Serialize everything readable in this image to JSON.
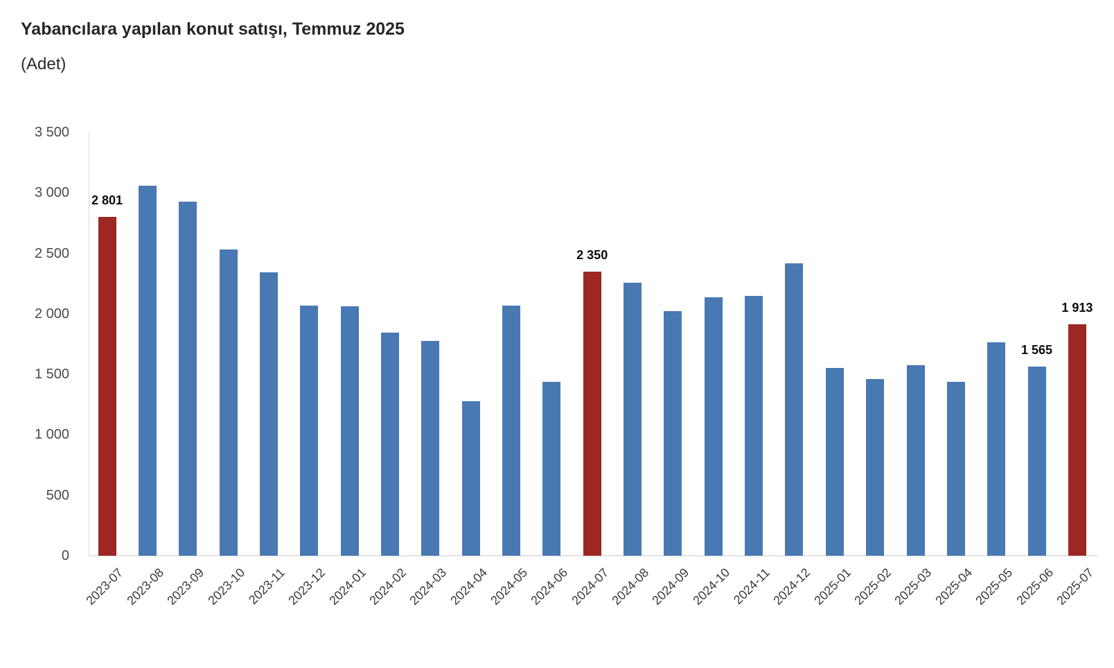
{
  "header": {
    "title": "Yabancılara yapılan konut satışı, Temmuz 2025",
    "subtitle": "(Adet)"
  },
  "chart_data": {
    "type": "bar",
    "title": "Yabancılara yapılan konut satışı, Temmuz 2025",
    "unit_label": "(Adet)",
    "categories": [
      "2023-07",
      "2023-08",
      "2023-09",
      "2023-10",
      "2023-11",
      "2023-12",
      "2024-01",
      "2024-02",
      "2024-03",
      "2024-04",
      "2024-05",
      "2024-06",
      "2024-07",
      "2024-08",
      "2024-09",
      "2024-10",
      "2024-11",
      "2024-12",
      "2025-01",
      "2025-02",
      "2025-03",
      "2025-04",
      "2025-05",
      "2025-06",
      "2025-07"
    ],
    "values": [
      2801,
      3060,
      2925,
      2530,
      2340,
      2065,
      2060,
      1845,
      1775,
      1275,
      2065,
      1440,
      2350,
      2255,
      2020,
      2135,
      2150,
      2415,
      1550,
      1460,
      1575,
      1440,
      1765,
      1565,
      1913
    ],
    "highlight_indices": [
      0,
      12,
      24
    ],
    "data_labels": [
      {
        "index": 0,
        "text": "2 801"
      },
      {
        "index": 12,
        "text": "2 350"
      },
      {
        "index": 23,
        "text": "1 565"
      },
      {
        "index": 24,
        "text": "1 913"
      }
    ],
    "ylim": [
      0,
      3500
    ],
    "ytick_step": 500,
    "ytick_labels": [
      "0",
      "500",
      "1 000",
      "1 500",
      "2 000",
      "2 500",
      "3 000",
      "3 500"
    ],
    "grid": false,
    "legend": false,
    "colors": {
      "bar": "#4879b3",
      "highlight_bar": "#9c2723",
      "axis_line": "#d8d8d8",
      "baseline": "#e5e5e5",
      "tick_text": "#4a4a4a",
      "category_text": "#3b3b3b",
      "data_label_text": "#0a0a0a",
      "title_text": "#23262b"
    }
  }
}
